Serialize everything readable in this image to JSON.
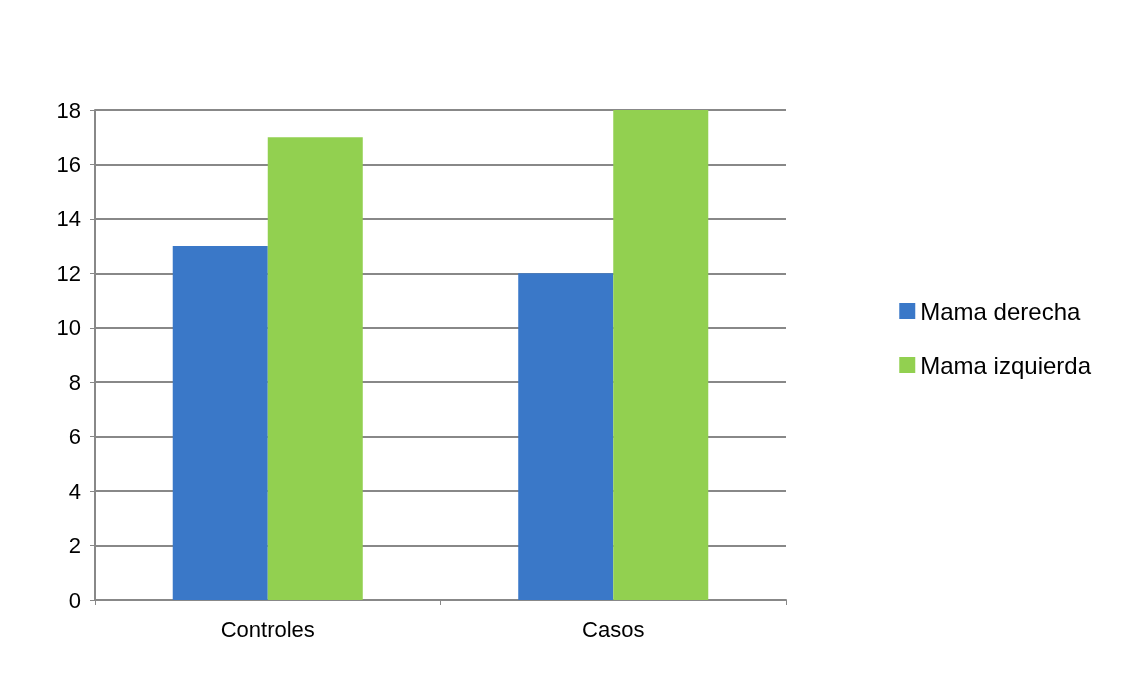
{
  "chart_data": {
    "type": "bar",
    "categories": [
      "Controles",
      "Casos"
    ],
    "series": [
      {
        "name": "Mama derecha",
        "color": "#3a78c8",
        "values": [
          13,
          12
        ]
      },
      {
        "name": "Mama izquierda",
        "color": "#92d050",
        "values": [
          17,
          18
        ]
      }
    ],
    "ylim": [
      0,
      18
    ],
    "yticks": [
      0,
      2,
      4,
      6,
      8,
      10,
      12,
      14,
      16,
      18
    ],
    "grid": "y",
    "legend": "right"
  }
}
